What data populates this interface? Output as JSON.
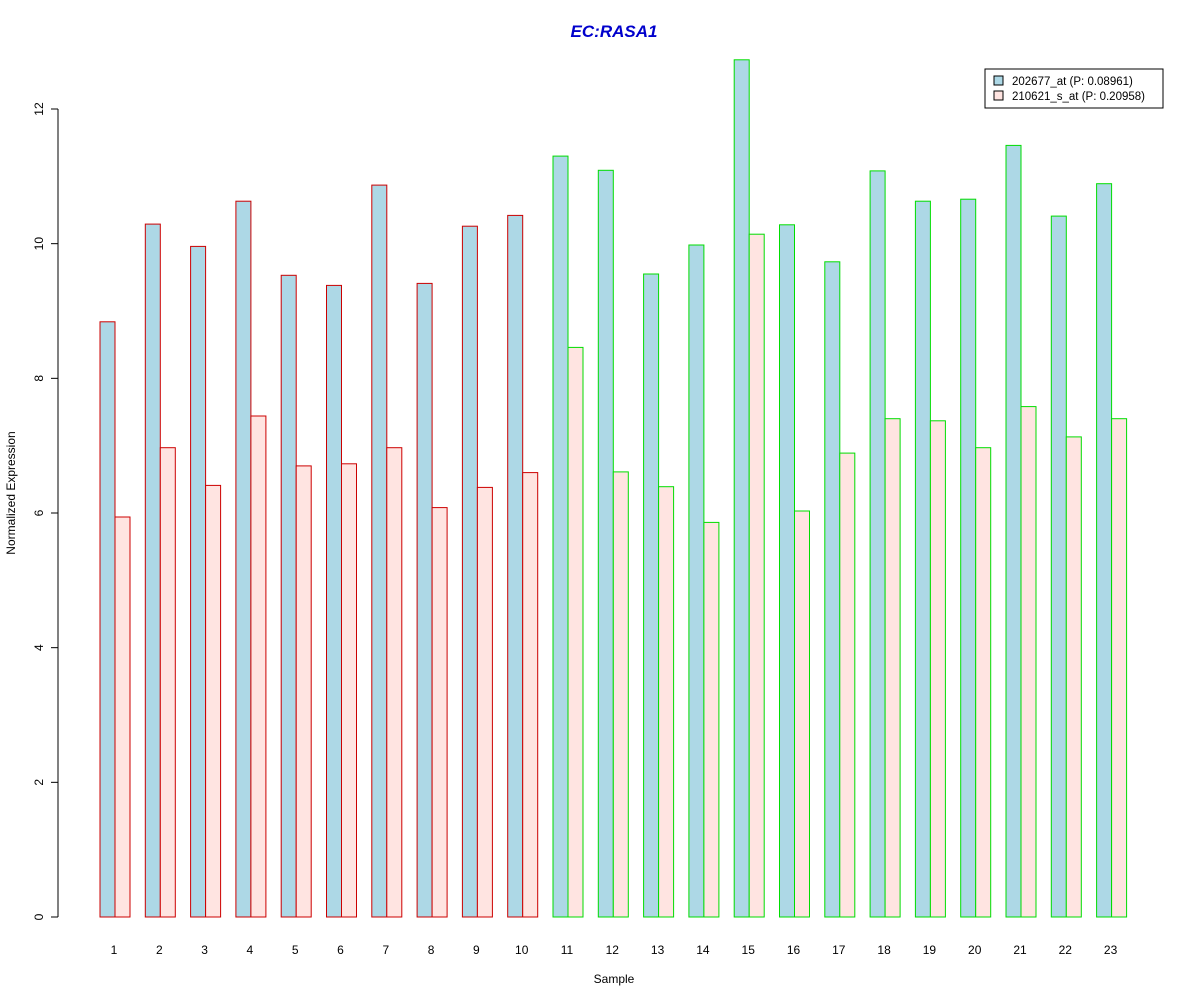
{
  "chart_data": {
    "type": "bar",
    "title": "EC:RASA1",
    "xlabel": "Sample",
    "ylabel": "Normalized Expression",
    "ylim": [
      0,
      12.75
    ],
    "y_ticks": [
      "0",
      "2",
      "4",
      "6",
      "8",
      "10",
      "12"
    ],
    "categories": [
      "1",
      "2",
      "3",
      "4",
      "5",
      "6",
      "7",
      "8",
      "9",
      "10",
      "11",
      "12",
      "13",
      "14",
      "15",
      "16",
      "17",
      "18",
      "19",
      "20",
      "21",
      "22",
      "23"
    ],
    "series": [
      {
        "name": "202677_at (P: 0.08961)",
        "fill": "#ADD8E6",
        "values": [
          8.84,
          10.29,
          9.96,
          10.63,
          9.53,
          9.38,
          10.87,
          9.41,
          10.26,
          10.42,
          11.3,
          11.09,
          9.55,
          9.98,
          12.73,
          10.28,
          9.73,
          11.08,
          10.63,
          10.66,
          11.46,
          10.41,
          10.89
        ]
      },
      {
        "name": "210621_s_at (P: 0.20958)",
        "fill": "#FFE4E1",
        "values": [
          5.94,
          6.97,
          6.41,
          7.44,
          6.7,
          6.73,
          6.97,
          6.08,
          6.38,
          6.6,
          8.46,
          6.61,
          6.39,
          5.86,
          10.14,
          6.03,
          6.89,
          7.4,
          7.37,
          6.97,
          7.58,
          7.13,
          7.4
        ]
      }
    ],
    "group_border_colors": [
      "#CC0000",
      "#CC0000",
      "#CC0000",
      "#CC0000",
      "#CC0000",
      "#CC0000",
      "#CC0000",
      "#CC0000",
      "#CC0000",
      "#CC0000",
      "#00DD00",
      "#00DD00",
      "#00DD00",
      "#00DD00",
      "#00DD00",
      "#00DD00",
      "#00DD00",
      "#00DD00",
      "#00DD00",
      "#00DD00",
      "#00DD00",
      "#00DD00",
      "#00DD00"
    ],
    "legend_position": "top-right",
    "grid": false
  },
  "colors": {
    "title": "#0000CC",
    "axis": "#000000",
    "legend_border": "#000000"
  }
}
